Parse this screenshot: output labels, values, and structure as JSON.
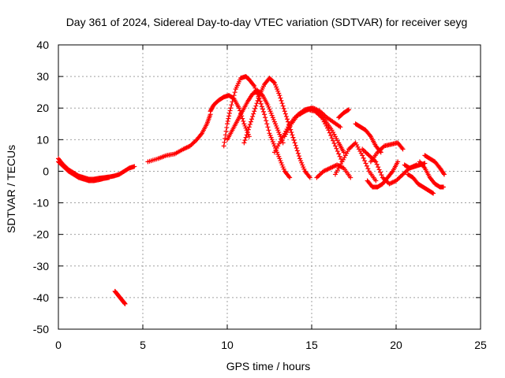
{
  "chart_data": {
    "type": "scatter",
    "title": "Day 361 of 2024, Sidereal Day-to-day VTEC variation (SDTVAR) for receiver seyg",
    "xlabel": "GPS time / hours",
    "ylabel": "SDTVAR / TECUs",
    "xlim": [
      0,
      25
    ],
    "ylim": [
      -50,
      40
    ],
    "x_ticks": [
      0,
      5,
      10,
      15,
      20,
      25
    ],
    "x_tick_labels": [
      "0",
      "5",
      "10",
      "15",
      "20",
      "25"
    ],
    "y_ticks": [
      -50,
      -40,
      -30,
      -20,
      -10,
      0,
      10,
      20,
      30,
      40
    ],
    "y_tick_labels": [
      "-50",
      "-40",
      "-30",
      "-20",
      "-10",
      "0",
      "10",
      "20",
      "30",
      "40"
    ],
    "grid": true,
    "marker": "+",
    "color": "#ff0000",
    "series": [
      {
        "name": "s1",
        "x": [
          0.0,
          0.3,
          0.6,
          0.9,
          1.2,
          1.5,
          1.8,
          2.1,
          2.4,
          2.7,
          3.0,
          3.3,
          3.6,
          3.9,
          4.2,
          4.5
        ],
        "y": [
          4,
          2,
          0.5,
          -0.5,
          -1.5,
          -2,
          -2.5,
          -2.5,
          -2.2,
          -2,
          -1.8,
          -1.5,
          -1,
          0,
          1,
          1.5
        ]
      },
      {
        "name": "s2",
        "x": [
          0.0,
          0.3,
          0.6,
          0.9,
          1.2,
          1.5,
          1.8,
          2.1,
          2.4,
          2.7,
          3.0
        ],
        "y": [
          3,
          1.5,
          0,
          -1,
          -2,
          -2.5,
          -3,
          -3,
          -2.7,
          -2.3,
          -2
        ]
      },
      {
        "name": "s3",
        "x": [
          3.35,
          3.5,
          3.65,
          3.8,
          3.95
        ],
        "y": [
          -38,
          -39,
          -40,
          -41,
          -42
        ]
      },
      {
        "name": "s4",
        "x": [
          5.3,
          5.9,
          6.4,
          6.9,
          7.4,
          7.8,
          8.2,
          8.5,
          8.8,
          9.0
        ],
        "y": [
          3,
          4,
          5,
          5.5,
          7,
          8,
          10,
          12,
          15,
          18
        ]
      },
      {
        "name": "s5",
        "x": [
          9.0,
          9.2,
          9.5,
          9.8,
          10.1,
          10.4,
          10.7,
          11.0,
          11.3
        ],
        "y": [
          19,
          21,
          22.5,
          23.5,
          24,
          23,
          20,
          15,
          11
        ]
      },
      {
        "name": "s6",
        "x": [
          9.8,
          10.0,
          10.2,
          10.5,
          10.8,
          11.1,
          11.3,
          11.6,
          11.9,
          12.2,
          12.5,
          12.8,
          13.1,
          13.4,
          13.7
        ],
        "y": [
          8,
          15,
          20,
          26,
          29.5,
          30,
          29,
          27,
          23,
          18,
          12,
          8,
          4,
          0,
          -2
        ]
      },
      {
        "name": "s7",
        "x": [
          11.0,
          11.3,
          11.6,
          11.9,
          12.2,
          12.5,
          12.8,
          13.1,
          13.4,
          13.7,
          14.0,
          14.3,
          14.6,
          14.9
        ],
        "y": [
          9,
          14,
          19,
          24,
          27.5,
          29.5,
          28,
          24,
          19,
          14,
          9,
          4,
          0,
          -2
        ]
      },
      {
        "name": "s8",
        "x": [
          10.0,
          10.3,
          10.6,
          10.9,
          11.2,
          11.5,
          11.8,
          12.1,
          12.4,
          12.7,
          13.0,
          13.3
        ],
        "y": [
          10,
          13,
          16,
          19,
          22,
          24.5,
          25.5,
          24,
          21,
          17,
          13,
          9
        ]
      },
      {
        "name": "s9",
        "x": [
          12.8,
          13.2,
          13.6,
          14.0,
          14.4,
          14.8,
          15.2,
          15.6,
          16.0,
          16.4,
          16.8
        ],
        "y": [
          6,
          10,
          14,
          17,
          18.5,
          19.5,
          19,
          17,
          13,
          8,
          3
        ]
      },
      {
        "name": "s10",
        "x": [
          13.4,
          13.8,
          14.2,
          14.6,
          15.0,
          15.4,
          15.8,
          16.2,
          16.6,
          16.9
        ],
        "y": [
          11,
          15,
          18,
          19.5,
          20,
          18.5,
          16,
          13,
          9,
          6
        ]
      },
      {
        "name": "s11",
        "x": [
          14.3,
          14.7,
          15.1,
          15.5,
          15.9,
          16.3,
          16.7
        ],
        "y": [
          18,
          19.5,
          20,
          19,
          17,
          15.5,
          14
        ]
      },
      {
        "name": "s12",
        "x": [
          15.3,
          15.7,
          16.1,
          16.5,
          16.9,
          17.3
        ],
        "y": [
          -2,
          0,
          1,
          2,
          1,
          -2
        ]
      },
      {
        "name": "s13",
        "x": [
          16.6,
          16.9,
          17.2
        ],
        "y": [
          17,
          18.5,
          19.5
        ]
      },
      {
        "name": "s14",
        "x": [
          16.4,
          16.8,
          17.2,
          17.6,
          18.0,
          18.4,
          18.8
        ],
        "y": [
          -1,
          3,
          7,
          9,
          5,
          0,
          -3
        ]
      },
      {
        "name": "s15",
        "x": [
          17.6,
          17.9,
          18.2,
          18.5,
          18.8,
          19.1
        ],
        "y": [
          15,
          14,
          13,
          11,
          8,
          6
        ]
      },
      {
        "name": "s16",
        "x": [
          18.0,
          18.4,
          18.8,
          19.2,
          19.6,
          20.0,
          20.4,
          20.8,
          21.2
        ],
        "y": [
          7,
          5,
          3,
          -2,
          -4,
          -3,
          -1,
          1,
          2
        ]
      },
      {
        "name": "s17",
        "x": [
          18.5,
          18.9,
          19.3,
          19.7,
          20.1,
          20.4
        ],
        "y": [
          3,
          6,
          8,
          8.5,
          9,
          7
        ]
      },
      {
        "name": "s18",
        "x": [
          18.3,
          18.6,
          18.9,
          19.2,
          19.5,
          19.8,
          20.1
        ],
        "y": [
          -3,
          -5,
          -5,
          -4,
          -2,
          0,
          3
        ]
      },
      {
        "name": "s19",
        "x": [
          20.5,
          20.8,
          21.1,
          21.4,
          21.7
        ],
        "y": [
          2,
          1,
          1.5,
          2,
          2.5
        ]
      },
      {
        "name": "s20",
        "x": [
          20.7,
          21.0,
          21.3,
          21.6,
          21.9,
          22.2
        ],
        "y": [
          -1,
          -2,
          -4,
          -5,
          -6,
          -7
        ]
      },
      {
        "name": "s21",
        "x": [
          21.4,
          21.7,
          22.0,
          22.3,
          22.6,
          22.8
        ],
        "y": [
          3,
          1,
          -2,
          -4,
          -5,
          -5
        ]
      },
      {
        "name": "s22",
        "x": [
          21.7,
          22.0,
          22.3,
          22.6,
          22.85
        ],
        "y": [
          5,
          4,
          3,
          1,
          -1
        ]
      }
    ]
  }
}
